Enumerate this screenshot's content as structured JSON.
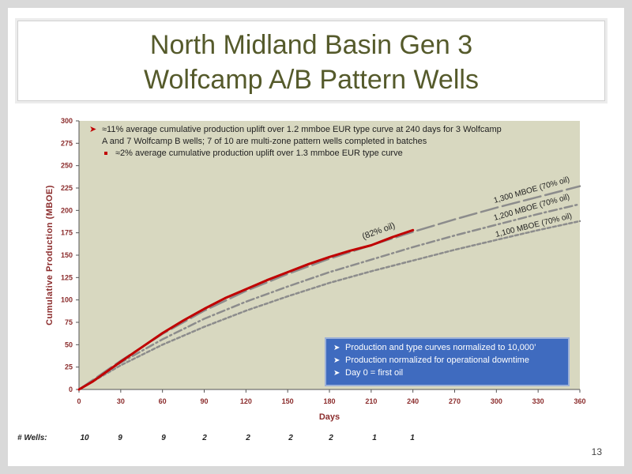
{
  "slide": {
    "title_line1": "North Midland Basin Gen 3",
    "title_line2": "Wolfcamp A/B Pattern Wells",
    "number": "13"
  },
  "colors": {
    "title": "#555a2b",
    "plot_bg": "#d8d8c0",
    "actual": "#c00000",
    "type_curve": "#8c8c8c",
    "axis_label": "#8b2c2c",
    "info_box": "#3f6bbf"
  },
  "annotations": {
    "bullet1": "≈11% average cumulative production uplift over 1.2 mmboe EUR type curve at 240 days for 3 Wolfcamp",
    "bullet1_cont": "A and 7 Wolfcamp B wells; 7 of 10 are multi-zone pattern wells completed in batches",
    "bullet2": "≈2% average cumulative production uplift over 1.3 mmboe EUR type curve",
    "oil_label": "(82% oil)",
    "curve_1300": "1,300 MBOE (70% oil)",
    "curve_1200": "1,200 MBOE (70% oil)",
    "curve_1100": "1,100 MBOE (70% oil)"
  },
  "info_box": {
    "items": [
      "Production and type curves normalized to 10,000’",
      "Production normalized for operational downtime",
      "Day 0 = first oil"
    ]
  },
  "wells_row": {
    "label": "# Wells:",
    "counts": [
      "10",
      "9",
      "9",
      "2",
      "2",
      "2",
      "2",
      "1",
      "1"
    ]
  },
  "chart_data": {
    "type": "line",
    "xlabel": "Days",
    "ylabel": "Cumulative Production (MBOE)",
    "xlim": [
      0,
      360
    ],
    "ylim": [
      0,
      300
    ],
    "xticks": [
      0,
      30,
      60,
      90,
      120,
      150,
      180,
      210,
      240,
      270,
      300,
      330,
      360
    ],
    "yticks": [
      0,
      25,
      50,
      75,
      100,
      125,
      150,
      175,
      200,
      225,
      250,
      275,
      300
    ],
    "series": [
      {
        "name": "",
        "style": "solid",
        "x": [
          0,
          10,
          20,
          30,
          45,
          60,
          75,
          90,
          105,
          120,
          135,
          150,
          165,
          180,
          195,
          210,
          225,
          240
        ],
        "y": [
          0,
          9,
          20,
          31,
          47,
          63,
          77,
          90,
          102,
          112,
          122,
          131,
          140,
          148,
          155,
          161,
          170,
          178
        ]
      },
      {
        "name": "1,300 MBOE (70% oil)",
        "style": "long-dash",
        "x": [
          0,
          30,
          60,
          90,
          120,
          150,
          180,
          210,
          240,
          270,
          300,
          330,
          360
        ],
        "y": [
          0,
          32,
          62,
          88,
          110,
          129,
          146,
          161,
          176,
          190,
          203,
          215,
          227
        ]
      },
      {
        "name": "1,200 MBOE (70% oil)",
        "style": "dash-dot",
        "x": [
          0,
          30,
          60,
          90,
          120,
          150,
          180,
          210,
          240,
          270,
          300,
          330,
          360
        ],
        "y": [
          0,
          30,
          56,
          79,
          98,
          115,
          131,
          145,
          159,
          172,
          184,
          196,
          207
        ]
      },
      {
        "name": "1,100 MBOE (70% oil)",
        "style": "short-dash",
        "x": [
          0,
          30,
          60,
          90,
          120,
          150,
          180,
          210,
          240,
          270,
          300,
          330,
          360
        ],
        "y": [
          0,
          27,
          50,
          70,
          88,
          104,
          119,
          132,
          144,
          156,
          167,
          178,
          188
        ]
      }
    ]
  }
}
